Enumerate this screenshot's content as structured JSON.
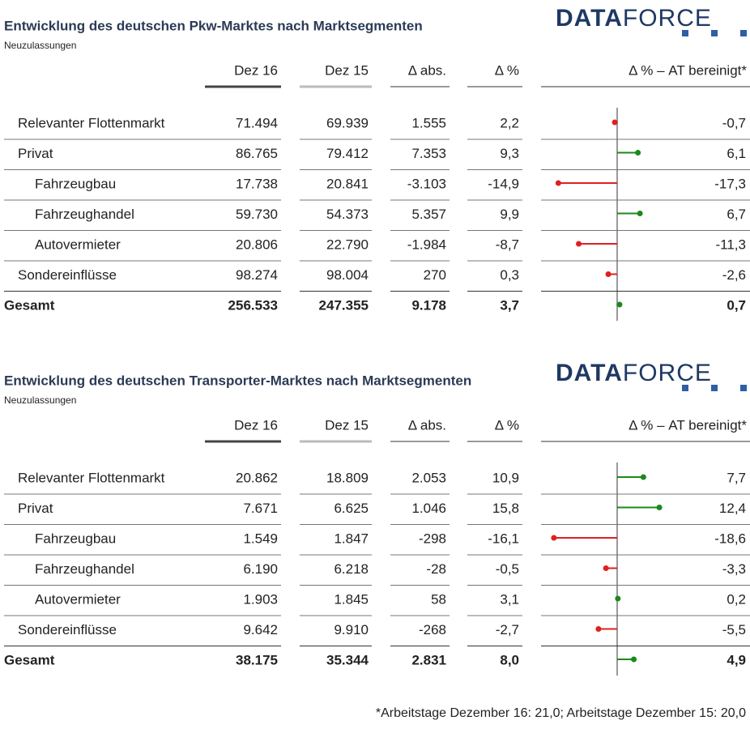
{
  "tables": [
    {
      "title": "Entwicklung des deutschen Pkw-Marktes nach Marktsegmenten",
      "subtitle": "Neuzulassungen",
      "logo": [
        "DATA",
        "FORCE"
      ],
      "headers": [
        "Dez 16",
        "Dez 15",
        "Δ abs.",
        "Δ %",
        "Δ % – AT bereinigt*"
      ],
      "rows": [
        {
          "label": "Relevanter Flottenmarkt",
          "level": 1,
          "cells": [
            "71.494",
            "69.939",
            "1.555",
            "2,2"
          ],
          "adjusted": {
            "value": -0.7,
            "label": "-0,7"
          }
        },
        {
          "label": "Privat",
          "level": 1,
          "cells": [
            "86.765",
            "79.412",
            "7.353",
            "9,3"
          ],
          "adjusted": {
            "value": 6.1,
            "label": "6,1"
          }
        },
        {
          "label": "Fahrzeugbau",
          "level": 2,
          "cells": [
            "17.738",
            "20.841",
            "-3.103",
            "-14,9"
          ],
          "adjusted": {
            "value": -17.3,
            "label": "-17,3"
          }
        },
        {
          "label": "Fahrzeughandel",
          "level": 2,
          "cells": [
            "59.730",
            "54.373",
            "5.357",
            "9,9"
          ],
          "adjusted": {
            "value": 6.7,
            "label": "6,7"
          }
        },
        {
          "label": "Autovermieter",
          "level": 2,
          "cells": [
            "20.806",
            "22.790",
            "-1.984",
            "-8,7"
          ],
          "adjusted": {
            "value": -11.3,
            "label": "-11,3"
          }
        },
        {
          "label": "Sondereinflüsse",
          "level": 1,
          "cells": [
            "98.274",
            "98.004",
            "270",
            "0,3"
          ],
          "adjusted": {
            "value": -2.6,
            "label": "-2,6"
          }
        },
        {
          "label": "Gesamt",
          "level": 0,
          "cells": [
            "256.533",
            "247.355",
            "9.178",
            "3,7"
          ],
          "adjusted": {
            "value": 0.7,
            "label": "0,7"
          }
        }
      ]
    },
    {
      "title": "Entwicklung des deutschen Transporter-Marktes nach Marktsegmenten",
      "subtitle": "Neuzulassungen",
      "logo": [
        "DATA",
        "FORCE"
      ],
      "headers": [
        "Dez 16",
        "Dez 15",
        "Δ abs.",
        "Δ %",
        "Δ % – AT bereinigt*"
      ],
      "rows": [
        {
          "label": "Relevanter Flottenmarkt",
          "level": 1,
          "cells": [
            "20.862",
            "18.809",
            "2.053",
            "10,9"
          ],
          "adjusted": {
            "value": 7.7,
            "label": "7,7"
          }
        },
        {
          "label": "Privat",
          "level": 1,
          "cells": [
            "7.671",
            "6.625",
            "1.046",
            "15,8"
          ],
          "adjusted": {
            "value": 12.4,
            "label": "12,4"
          }
        },
        {
          "label": "Fahrzeugbau",
          "level": 2,
          "cells": [
            "1.549",
            "1.847",
            "-298",
            "-16,1"
          ],
          "adjusted": {
            "value": -18.6,
            "label": "-18,6"
          }
        },
        {
          "label": "Fahrzeughandel",
          "level": 2,
          "cells": [
            "6.190",
            "6.218",
            "-28",
            "-0,5"
          ],
          "adjusted": {
            "value": -3.3,
            "label": "-3,3"
          }
        },
        {
          "label": "Autovermieter",
          "level": 2,
          "cells": [
            "1.903",
            "1.845",
            "58",
            "3,1"
          ],
          "adjusted": {
            "value": 0.2,
            "label": "0,2"
          }
        },
        {
          "label": "Sondereinflüsse",
          "level": 1,
          "cells": [
            "9.642",
            "9.910",
            "-268",
            "-2,7"
          ],
          "adjusted": {
            "value": -5.5,
            "label": "-5,5"
          }
        },
        {
          "label": "Gesamt",
          "level": 0,
          "cells": [
            "38.175",
            "35.344",
            "2.831",
            "8,0"
          ],
          "adjusted": {
            "value": 4.9,
            "label": "4,9"
          }
        }
      ]
    }
  ],
  "footnote": "*Arbeitstage Dezember 16: 21,0; Arbeitstage Dezember 15: 20,0"
}
